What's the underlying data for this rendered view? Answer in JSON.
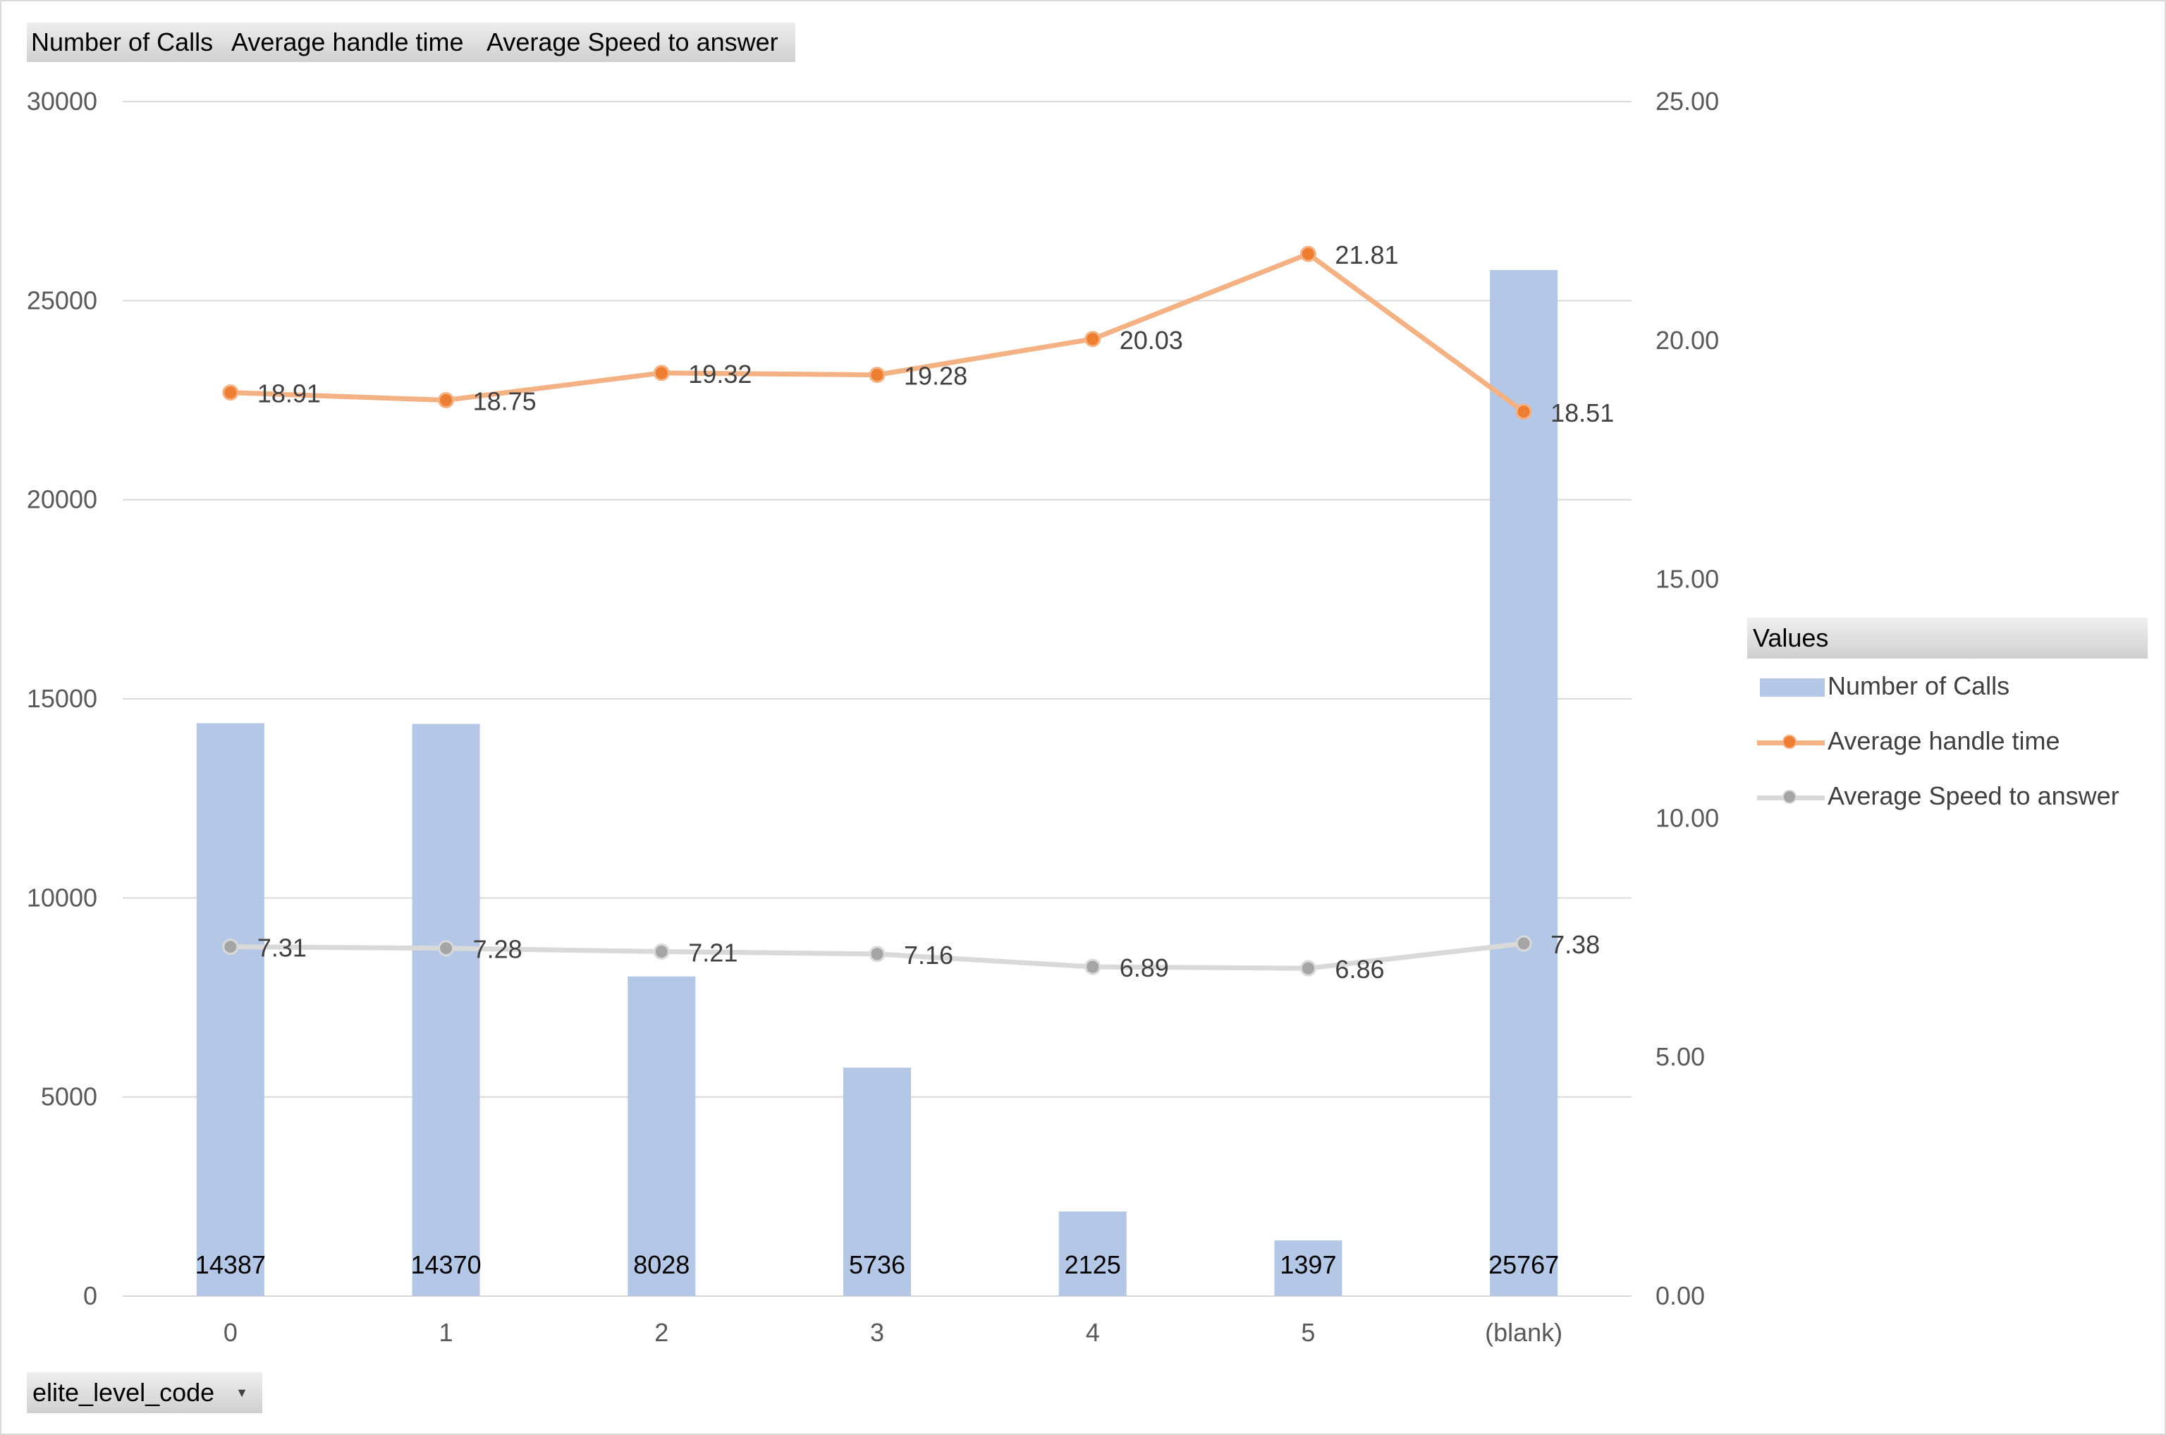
{
  "field_buttons": {
    "calls": "Number of Calls",
    "aht": "Average handle time",
    "asa": "Average Speed to answer"
  },
  "axis_field": {
    "label": "elite_level_code",
    "dropdown_icon": "chevron-down-icon"
  },
  "legend": {
    "title": "Values",
    "items": [
      "Number of Calls",
      "Average handle time",
      "Average Speed to answer"
    ]
  },
  "colors": {
    "bars": "#b4c7e7",
    "aht_line": "#f4b183",
    "aht_marker": "#ed7d31",
    "asa_line": "#d9d9d9",
    "asa_marker": "#a5a5a5",
    "grid": "#d9d9d9"
  },
  "chart_data": {
    "type": "bar",
    "categories": [
      "0",
      "1",
      "2",
      "3",
      "4",
      "5",
      "(blank)"
    ],
    "series": [
      {
        "name": "Number of Calls",
        "type": "bar",
        "axis": "left",
        "values": [
          14387,
          14370,
          8028,
          5736,
          2125,
          1397,
          25767
        ]
      },
      {
        "name": "Average handle time",
        "type": "line",
        "axis": "right",
        "values": [
          18.91,
          18.75,
          19.32,
          19.28,
          20.03,
          21.81,
          18.51
        ]
      },
      {
        "name": "Average Speed to answer",
        "type": "line",
        "axis": "right",
        "values": [
          7.31,
          7.28,
          7.21,
          7.16,
          6.89,
          6.86,
          7.38
        ]
      }
    ],
    "ylim": [
      0,
      30000
    ],
    "y2lim": [
      0,
      25
    ],
    "yticks": [
      "0",
      "5000",
      "10000",
      "15000",
      "20000",
      "25000",
      "30000"
    ],
    "y2ticks": [
      "0.00",
      "5.00",
      "10.00",
      "15.00",
      "20.00",
      "25.00"
    ],
    "grid": true,
    "legend_position": "right"
  }
}
